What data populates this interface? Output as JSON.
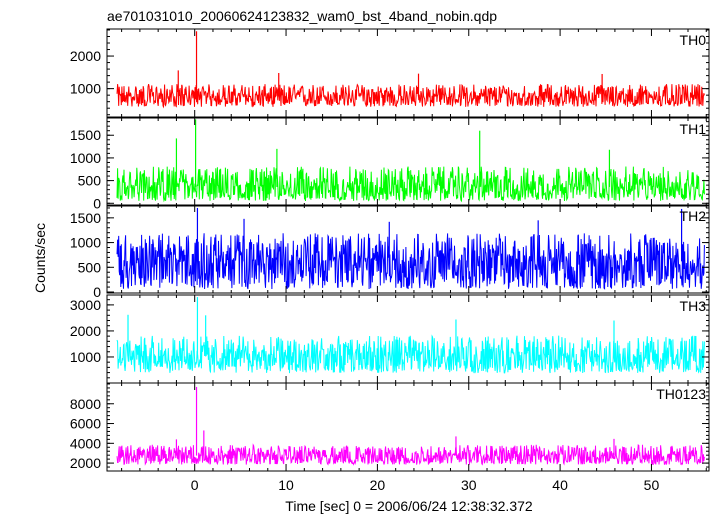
{
  "chart_data": {
    "type": "line",
    "title": "ae701031010_20060624123832_wam0_bst_4band_nobin.qdp",
    "xlabel": "Time [sec] 0 = 2006/06/24 12:38:32.372",
    "ylabel": "Counts/sec",
    "xlim": [
      -9.6,
      56.3
    ],
    "x_ticks": [
      0,
      10,
      20,
      30,
      40,
      50
    ],
    "x_tick_labels": [
      "0",
      "10",
      "20",
      "30",
      "40",
      "50"
    ],
    "x_data_range": [
      -8.5,
      55.8
    ],
    "grid": false,
    "legend": "none",
    "panels": [
      {
        "name": "TH0",
        "color": "#ff0000",
        "ylim": [
          130,
          2830
        ],
        "y_ticks": [
          1000,
          2000
        ],
        "y_tick_labels": [
          "1000",
          "2000"
        ],
        "baseline": 760,
        "noise_low": 320,
        "noise_high": 380,
        "events": [
          {
            "x": 0.2,
            "y": 2760
          },
          {
            "x": -1.8,
            "y": 1560
          },
          {
            "x": 9.2,
            "y": 1480
          },
          {
            "x": 24.5,
            "y": 1460
          },
          {
            "x": 44.6,
            "y": 1450
          }
        ]
      },
      {
        "name": "TH1",
        "color": "#00ff00",
        "ylim": [
          -60,
          1880
        ],
        "y_ticks": [
          0,
          500,
          1000,
          1500
        ],
        "y_tick_labels": [
          "0",
          "500",
          "1000",
          "1500"
        ],
        "baseline": 360,
        "noise_low": 310,
        "noise_high": 450,
        "events": [
          {
            "x": 0.1,
            "y": 1850
          },
          {
            "x": -2.0,
            "y": 1430
          },
          {
            "x": 31.2,
            "y": 1600
          },
          {
            "x": 9.0,
            "y": 1200
          },
          {
            "x": 45.4,
            "y": 1180
          }
        ]
      },
      {
        "name": "TH2",
        "color": "#0000ff",
        "ylim": [
          -20,
          1760
        ],
        "y_ticks": [
          0,
          500,
          1000,
          1500
        ],
        "y_tick_labels": [
          "0",
          "500",
          "1000",
          "1500"
        ],
        "baseline": 620,
        "noise_low": 560,
        "noise_high": 570,
        "events": [
          {
            "x": 0.3,
            "y": 1700
          },
          {
            "x": 53.3,
            "y": 1680
          },
          {
            "x": 5.4,
            "y": 1480
          },
          {
            "x": 37.6,
            "y": 1450
          },
          {
            "x": 21.3,
            "y": 1420
          }
        ]
      },
      {
        "name": "TH3",
        "color": "#00ffff",
        "ylim": [
          0,
          3380
        ],
        "y_ticks": [
          1000,
          2000,
          3000
        ],
        "y_tick_labels": [
          "1000",
          "2000",
          "3000"
        ],
        "baseline": 1020,
        "noise_low": 640,
        "noise_high": 800,
        "events": [
          {
            "x": 0.3,
            "y": 3300
          },
          {
            "x": -7.3,
            "y": 2620
          },
          {
            "x": 1.2,
            "y": 2600
          },
          {
            "x": 28.6,
            "y": 2440
          },
          {
            "x": 45.9,
            "y": 2400
          }
        ]
      },
      {
        "name": "TH0123",
        "color": "#ff00ff",
        "ylim": [
          1200,
          10100
        ],
        "y_ticks": [
          2000,
          4000,
          6000,
          8000
        ],
        "y_tick_labels": [
          "2000",
          "4000",
          "6000",
          "8000"
        ],
        "baseline": 2760,
        "noise_low": 920,
        "noise_high": 1100,
        "events": [
          {
            "x": 0.2,
            "y": 9700
          },
          {
            "x": 1.0,
            "y": 5300
          },
          {
            "x": 28.6,
            "y": 4700
          },
          {
            "x": -2.0,
            "y": 4400
          },
          {
            "x": 45.9,
            "y": 4450
          }
        ]
      }
    ]
  }
}
